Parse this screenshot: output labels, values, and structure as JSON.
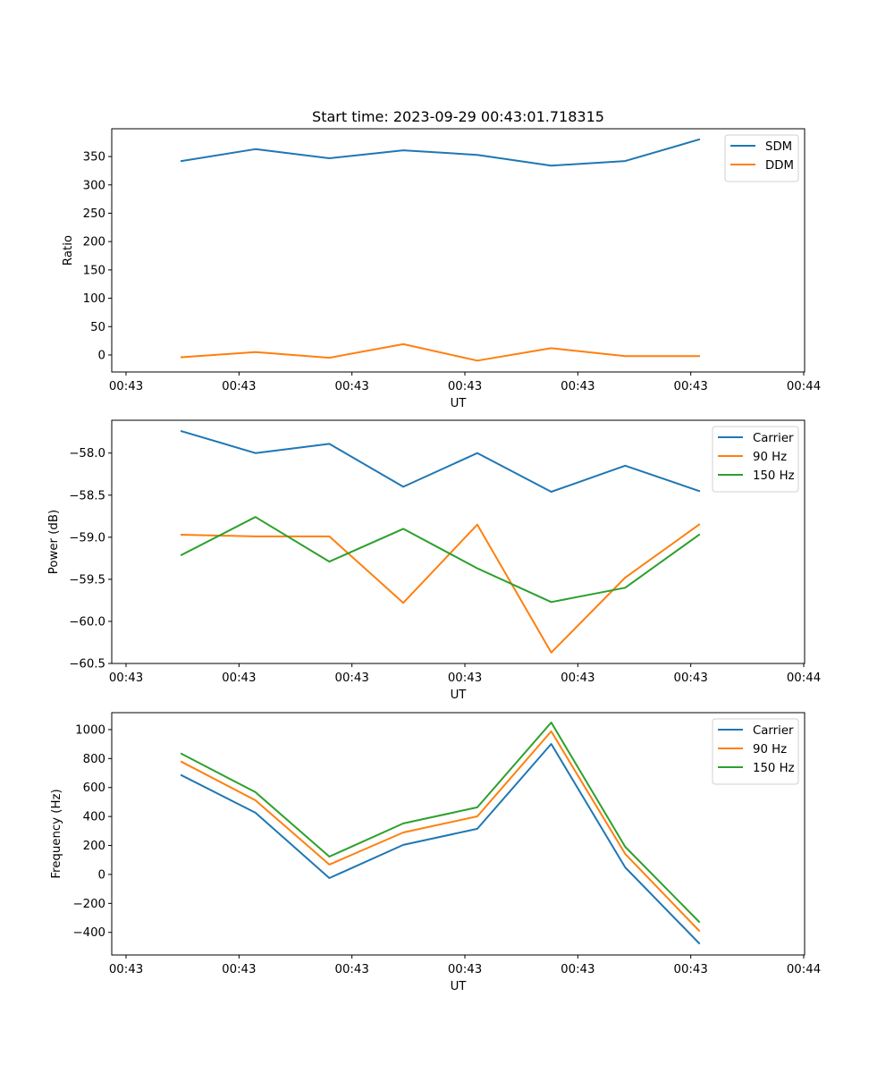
{
  "title": "Start time: 2023-09-29 00:43:01.718315",
  "chart_data": [
    {
      "type": "line",
      "title": "Start time: 2023-09-29 00:43:01.718315",
      "xlabel": "UT",
      "ylabel": "Ratio",
      "x_tick_labels": [
        "00:43",
        "00:43",
        "00:43",
        "00:43",
        "00:43",
        "00:43",
        "00:44"
      ],
      "x_points": 8,
      "ylim": [
        -30,
        399
      ],
      "y_ticks": [
        0,
        50,
        100,
        150,
        200,
        250,
        300,
        350
      ],
      "y_tick_labels": [
        "0",
        "50",
        "100",
        "150",
        "200",
        "250",
        "300",
        "350"
      ],
      "legend_position": "top-right",
      "grid": false,
      "series": [
        {
          "name": "SDM",
          "color": "#1f77b4",
          "values": [
            342,
            363,
            347,
            361,
            353,
            334,
            342,
            380
          ]
        },
        {
          "name": "DDM",
          "color": "#ff7f0e",
          "values": [
            -4,
            5,
            -5,
            19,
            -10,
            12,
            -2,
            -2
          ]
        }
      ]
    },
    {
      "type": "line",
      "title": "",
      "xlabel": "UT",
      "ylabel": "Power (dB)",
      "x_tick_labels": [
        "00:43",
        "00:43",
        "00:43",
        "00:43",
        "00:43",
        "00:43",
        "00:44"
      ],
      "x_points": 8,
      "ylim": [
        -60.5,
        -57.61
      ],
      "y_ticks": [
        -60.5,
        -60.0,
        -59.5,
        -59.0,
        -58.5,
        -58.0
      ],
      "y_tick_labels": [
        "−60.5",
        "−60.0",
        "−59.5",
        "−59.0",
        "−58.5",
        "−58.0"
      ],
      "legend_position": "top-right",
      "grid": false,
      "series": [
        {
          "name": "Carrier",
          "color": "#1f77b4",
          "values": [
            -57.74,
            -58.0,
            -57.89,
            -58.4,
            -58.0,
            -58.46,
            -58.15,
            -58.45
          ]
        },
        {
          "name": "90 Hz",
          "color": "#ff7f0e",
          "values": [
            -58.97,
            -58.99,
            -58.99,
            -59.78,
            -58.85,
            -60.37,
            -59.48,
            -58.85
          ]
        },
        {
          "name": "150 Hz",
          "color": "#2ca02c",
          "values": [
            -59.21,
            -58.76,
            -59.29,
            -58.9,
            -59.37,
            -59.77,
            -59.6,
            -58.97
          ]
        }
      ]
    },
    {
      "type": "line",
      "title": "",
      "xlabel": "UT",
      "ylabel": "Frequency (Hz)",
      "x_tick_labels": [
        "00:43",
        "00:43",
        "00:43",
        "00:43",
        "00:43",
        "00:43",
        "00:44"
      ],
      "x_points": 8,
      "ylim": [
        -556,
        1117
      ],
      "y_ticks": [
        -400,
        -200,
        0,
        200,
        400,
        600,
        800,
        1000
      ],
      "y_tick_labels": [
        "−400",
        "−200",
        "0",
        "200",
        "400",
        "600",
        "800",
        "1000"
      ],
      "legend_position": "top-right",
      "grid": false,
      "series": [
        {
          "name": "Carrier",
          "color": "#1f77b4",
          "values": [
            685,
            426,
            -25,
            204,
            315,
            901,
            49,
            -475
          ]
        },
        {
          "name": "90 Hz",
          "color": "#ff7f0e",
          "values": [
            778,
            512,
            68,
            290,
            401,
            988,
            142,
            -389
          ]
        },
        {
          "name": "150 Hz",
          "color": "#2ca02c",
          "values": [
            833,
            568,
            123,
            352,
            463,
            1049,
            191,
            -327
          ]
        }
      ]
    }
  ]
}
